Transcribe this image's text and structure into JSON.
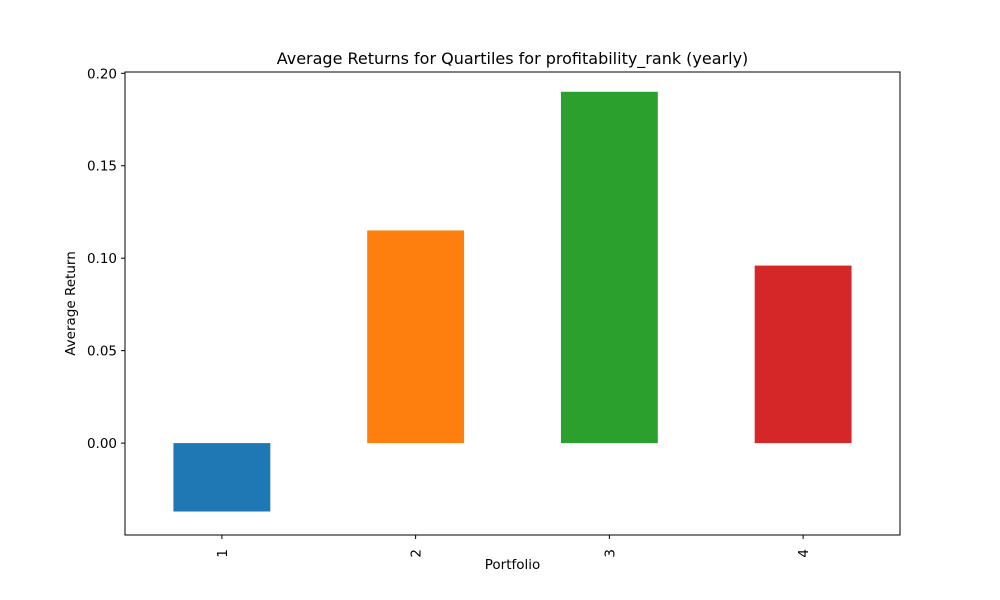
{
  "chart_data": {
    "type": "bar",
    "title": "Average Returns for Quartiles for profitability_rank (yearly)",
    "xlabel": "Portfolio",
    "ylabel": "Average Return",
    "categories": [
      "1",
      "2",
      "3",
      "4"
    ],
    "values": [
      -0.037,
      0.115,
      0.19,
      0.096
    ],
    "colors": [
      "#1f77b4",
      "#ff7f0e",
      "#2ca02c",
      "#d62728"
    ],
    "ylim": [
      -0.0497,
      0.2007
    ],
    "yticks": [
      0.0,
      0.05,
      0.1,
      0.15,
      0.2
    ],
    "ytick_labels": [
      "0.00",
      "0.05",
      "0.10",
      "0.15",
      "0.20"
    ],
    "grid": false,
    "legend": "none",
    "xtick_rotation": "vertical"
  }
}
